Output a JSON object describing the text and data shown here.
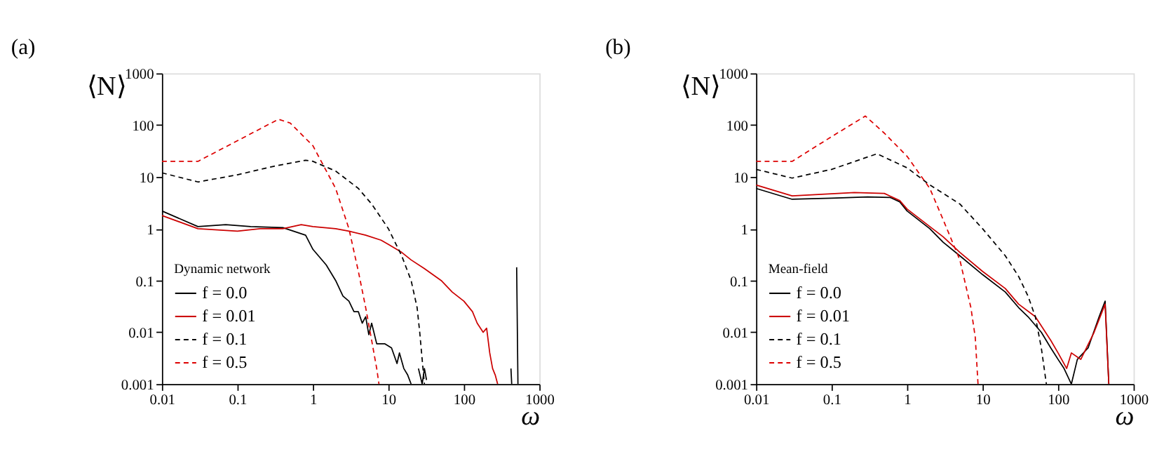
{
  "chart_data": [
    {
      "type": "line",
      "title": "(a)",
      "xlabel": "ω",
      "ylabel": "⟨N⟩",
      "legend_title": "Dynamic network",
      "legend": "bottom left",
      "log": "xy",
      "xlim": [
        0.01,
        1000
      ],
      "ylim": [
        0.001,
        1000
      ],
      "xticks": [
        0.01,
        0.1,
        1,
        10,
        100,
        1000
      ],
      "yticks": [
        0.001,
        0.01,
        0.1,
        1,
        10,
        100,
        1000
      ],
      "series": [
        {
          "name": "f = 0.0",
          "color": "#000000",
          "line_style": "solid",
          "x": [
            0.01,
            0.03,
            0.07,
            0.15,
            0.4,
            0.8,
            1,
            1.5,
            2,
            2.5,
            3,
            3.5,
            4,
            4.5,
            5,
            5.5,
            6,
            7,
            9,
            11,
            13,
            14,
            16,
            18,
            20,
            22,
            25,
            28,
            30,
            32,
            35,
            420,
            430,
            440,
            500,
            520
          ],
          "values": [
            2.2,
            1.1,
            1.2,
            1.1,
            1.05,
            0.75,
            0.4,
            0.2,
            0.1,
            0.05,
            0.04,
            0.025,
            0.025,
            0.015,
            0.02,
            0.009,
            0.015,
            0.006,
            0.006,
            0.005,
            0.0025,
            0.004,
            0.002,
            0.0015,
            0.001,
            null,
            0.002,
            0.001,
            0.002,
            0.0012,
            null,
            0.002,
            0.001,
            null,
            0.18,
            0.001
          ]
        },
        {
          "name": "f = 0.01",
          "color": "#cc0000",
          "line_style": "solid",
          "x": [
            0.01,
            0.03,
            0.1,
            0.2,
            0.4,
            0.7,
            1,
            2,
            3,
            5,
            8,
            10,
            15,
            20,
            30,
            50,
            70,
            100,
            130,
            150,
            180,
            200,
            220,
            240,
            260,
            280
          ],
          "values": [
            1.8,
            1.0,
            0.9,
            1.0,
            1.0,
            1.2,
            1.1,
            1.0,
            0.9,
            0.75,
            0.6,
            0.5,
            0.35,
            0.25,
            0.17,
            0.1,
            0.06,
            0.04,
            0.025,
            0.015,
            0.01,
            0.012,
            0.004,
            0.002,
            0.0015,
            0.001
          ]
        },
        {
          "name": "f = 0.1",
          "color": "#000000",
          "line_style": "dashed",
          "x": [
            0.01,
            0.03,
            0.1,
            0.3,
            0.8,
            1,
            2,
            4,
            6,
            10,
            15,
            20,
            24,
            26,
            28,
            30
          ],
          "values": [
            12,
            8,
            11,
            16,
            21,
            20,
            13,
            6,
            3,
            1,
            0.3,
            0.1,
            0.03,
            0.01,
            0.003,
            0.001
          ]
        },
        {
          "name": "f = 0.5",
          "color": "#dd0000",
          "line_style": "dashed",
          "x": [
            0.01,
            0.03,
            0.1,
            0.35,
            0.5,
            1,
            2,
            3,
            4,
            5,
            6,
            7,
            7.5
          ],
          "values": [
            20,
            20,
            50,
            130,
            110,
            40,
            6,
            1,
            0.15,
            0.03,
            0.007,
            0.002,
            0.001
          ]
        }
      ]
    },
    {
      "type": "line",
      "title": "(b)",
      "xlabel": "ω",
      "ylabel": "⟨N⟩",
      "legend_title": "Mean-field",
      "legend": "bottom left",
      "log": "xy",
      "xlim": [
        0.01,
        1000
      ],
      "ylim": [
        0.001,
        1000
      ],
      "xticks": [
        0.01,
        0.1,
        1,
        10,
        100,
        1000
      ],
      "yticks": [
        0.001,
        0.01,
        0.1,
        1,
        10,
        100,
        1000
      ],
      "series": [
        {
          "name": "f = 0.0",
          "color": "#000000",
          "line_style": "solid",
          "x": [
            0.01,
            0.03,
            0.1,
            0.3,
            0.6,
            0.8,
            1,
            2,
            3,
            5,
            10,
            20,
            30,
            40,
            60,
            80,
            100,
            120,
            150,
            180,
            250,
            350,
            420,
            470
          ],
          "values": [
            6,
            3.7,
            3.9,
            4.1,
            4,
            3.3,
            2.2,
            1,
            0.55,
            0.3,
            0.13,
            0.06,
            0.03,
            0.02,
            0.01,
            0.005,
            0.003,
            0.002,
            0.001,
            0.003,
            0.005,
            0.02,
            0.04,
            0.001
          ]
        },
        {
          "name": "f = 0.01",
          "color": "#cc0000",
          "line_style": "solid",
          "x": [
            0.01,
            0.03,
            0.2,
            0.5,
            0.8,
            1,
            2,
            3,
            5,
            10,
            20,
            30,
            50,
            80,
            100,
            130,
            150,
            200,
            300,
            420,
            470
          ],
          "values": [
            7,
            4.3,
            5,
            4.8,
            3.5,
            2.4,
            1.1,
            0.7,
            0.35,
            0.15,
            0.07,
            0.035,
            0.02,
            0.007,
            0.004,
            0.002,
            0.004,
            0.003,
            0.01,
            0.035,
            0.001
          ]
        },
        {
          "name": "f = 0.1",
          "color": "#000000",
          "line_style": "dashed",
          "x": [
            0.01,
            0.03,
            0.1,
            0.4,
            1,
            2,
            5,
            10,
            20,
            30,
            40,
            50,
            60,
            70
          ],
          "values": [
            14,
            9.5,
            14,
            28,
            15,
            7,
            3,
            1,
            0.3,
            0.12,
            0.05,
            0.02,
            0.005,
            0.001
          ]
        },
        {
          "name": "f = 0.5",
          "color": "#dd0000",
          "line_style": "dashed",
          "x": [
            0.01,
            0.03,
            0.1,
            0.28,
            0.5,
            1,
            2,
            3,
            5,
            7,
            8,
            8.7
          ],
          "values": [
            20,
            20,
            60,
            150,
            70,
            25,
            6,
            1.5,
            0.25,
            0.03,
            0.008,
            0.001
          ]
        }
      ]
    }
  ]
}
